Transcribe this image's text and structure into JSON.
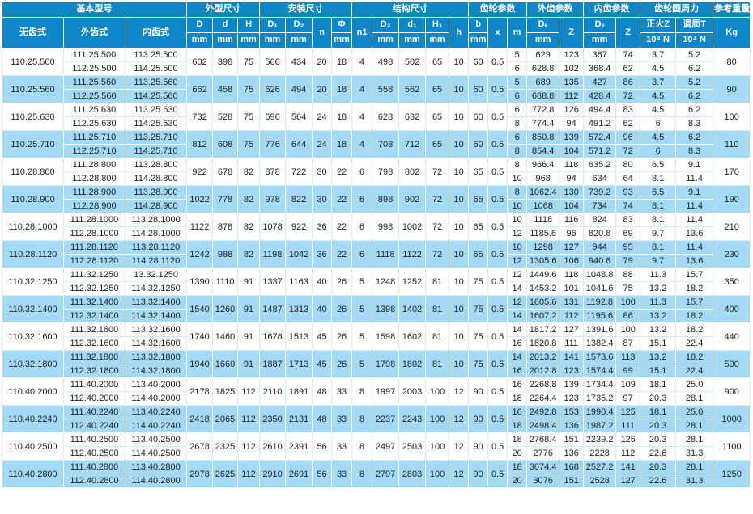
{
  "colors": {
    "header_bg": "#0e86c7",
    "row_alt_bg": "#a4daf5",
    "row_bg": "#ffffff",
    "header_text": "#ffffff",
    "body_text": "#1f1f1f"
  },
  "header": {
    "groups": [
      {
        "label": "基本型号",
        "colspan": 3
      },
      {
        "label": "外型尺寸",
        "colspan": 3
      },
      {
        "label": "安装尺寸",
        "colspan": 4
      },
      {
        "label": "结构尺寸",
        "colspan": 5
      },
      {
        "label": "齿轮参数",
        "colspan": 3
      },
      {
        "label": "外齿参数",
        "colspan": 2
      },
      {
        "label": "内齿参数",
        "colspan": 2
      },
      {
        "label": "齿轮圆周力",
        "colspan": 2
      },
      {
        "label": "参考重量",
        "colspan": 1
      }
    ],
    "cols": [
      {
        "label": "无齿式"
      },
      {
        "label": "外齿式"
      },
      {
        "label": "内齿式"
      },
      {
        "label": "D",
        "unit": "mm"
      },
      {
        "label": "d",
        "unit": "mm"
      },
      {
        "label": "H",
        "unit": "mm"
      },
      {
        "label": "D₁",
        "unit": "mm"
      },
      {
        "label": "D₂",
        "unit": "mm"
      },
      {
        "label": "n"
      },
      {
        "label": "Φ",
        "unit": "mm"
      },
      {
        "label": "n1"
      },
      {
        "label": "D₃",
        "unit": "mm"
      },
      {
        "label": "d₁",
        "unit": "mm"
      },
      {
        "label": "H₁",
        "unit": "mm"
      },
      {
        "label": "h"
      },
      {
        "label": "b",
        "unit": "mm"
      },
      {
        "label": "x"
      },
      {
        "label": "m"
      },
      {
        "label": "Dₑ",
        "unit": "mm"
      },
      {
        "label": "Z"
      },
      {
        "label": "Dₑ",
        "unit": "mm"
      },
      {
        "label": "Z"
      },
      {
        "label": "正火Z",
        "unit": "10⁴ N"
      },
      {
        "label": "调质T",
        "unit": "10⁴ N"
      },
      {
        "label": "Kg"
      }
    ]
  },
  "rows": [
    {
      "model": "110.25.500",
      "ext": [
        "111.25.500",
        "112.25.500"
      ],
      "int": [
        "113.25.500",
        "114.25.500"
      ],
      "shared": [
        "602",
        "398",
        "75",
        "566",
        "434",
        "20",
        "18",
        "4",
        "498",
        "502",
        "65",
        "10",
        "60",
        "0.5"
      ],
      "sub": [
        [
          "5",
          "629",
          "123",
          "367",
          "74",
          "3.7",
          "5.2"
        ],
        [
          "6",
          "628.8",
          "102",
          "368.4",
          "62",
          "4.5",
          "6.2"
        ]
      ],
      "kg": "80"
    },
    {
      "model": "110.25.560",
      "ext": [
        "111.25.560",
        "112.25.560"
      ],
      "int": [
        "113.25.560",
        "114.25.560"
      ],
      "shared": [
        "662",
        "458",
        "75",
        "626",
        "494",
        "20",
        "18",
        "4",
        "558",
        "562",
        "65",
        "10",
        "60",
        "0.5"
      ],
      "sub": [
        [
          "5",
          "689",
          "135",
          "427",
          "86",
          "3.7",
          "5.2"
        ],
        [
          "6",
          "688.8",
          "112",
          "428.4",
          "72",
          "4.5",
          "6.2"
        ]
      ],
      "kg": "90"
    },
    {
      "model": "110.25.630",
      "ext": [
        "111.25.630",
        "112.25.630"
      ],
      "int": [
        "113.25.630",
        "114.25.630"
      ],
      "shared": [
        "732",
        "528",
        "75",
        "696",
        "564",
        "24",
        "18",
        "4",
        "628",
        "632",
        "65",
        "10",
        "60",
        "0.5"
      ],
      "sub": [
        [
          "6",
          "772.8",
          "126",
          "494.4",
          "83",
          "4.5",
          "6.2"
        ],
        [
          "8",
          "774.4",
          "94",
          "491.2",
          "62",
          "6",
          "8.3"
        ]
      ],
      "kg": "100"
    },
    {
      "model": "110.25.710",
      "ext": [
        "111.25.710",
        "112.25.710"
      ],
      "int": [
        "113.25.710",
        "114.25.710"
      ],
      "shared": [
        "812",
        "608",
        "75",
        "776",
        "644",
        "24",
        "18",
        "4",
        "708",
        "712",
        "65",
        "10",
        "60",
        "0.5"
      ],
      "sub": [
        [
          "6",
          "850.8",
          "139",
          "572.4",
          "96",
          "4.5",
          "6.2"
        ],
        [
          "8",
          "854.4",
          "104",
          "571.2",
          "72",
          "6",
          "8.3"
        ]
      ],
      "kg": "110"
    },
    {
      "model": "110.28.800",
      "ext": [
        "111.28.800",
        "112.28.800"
      ],
      "int": [
        "113.28.800",
        "114.28.800"
      ],
      "shared": [
        "922",
        "678",
        "82",
        "878",
        "722",
        "30",
        "22",
        "6",
        "798",
        "802",
        "72",
        "10",
        "65",
        "0.5"
      ],
      "sub": [
        [
          "8",
          "966.4",
          "118",
          "635.2",
          "80",
          "6.5",
          "9.1"
        ],
        [
          "10",
          "968",
          "94",
          "634",
          "64",
          "8.1",
          "11.4"
        ]
      ],
      "kg": "170"
    },
    {
      "model": "110.28.900",
      "ext": [
        "111.28.900",
        "112.28.900"
      ],
      "int": [
        "113.28.900",
        "114.28.900"
      ],
      "shared": [
        "1022",
        "778",
        "82",
        "978",
        "822",
        "30",
        "22",
        "6",
        "898",
        "902",
        "72",
        "10",
        "65",
        "0.5"
      ],
      "sub": [
        [
          "8",
          "1062.4",
          "130",
          "739.2",
          "93",
          "6.5",
          "9.1"
        ],
        [
          "10",
          "1068",
          "104",
          "734",
          "74",
          "8.1",
          "11.4"
        ]
      ],
      "kg": "190"
    },
    {
      "model": "110.28.1000",
      "ext": [
        "111.28.1000",
        "112.28.1000"
      ],
      "int": [
        "113.28.1000",
        "114.28.1000"
      ],
      "shared": [
        "1122",
        "878",
        "82",
        "1078",
        "922",
        "36",
        "22",
        "6",
        "998",
        "1002",
        "72",
        "10",
        "65",
        "0.5"
      ],
      "sub": [
        [
          "10",
          "1118",
          "116",
          "824",
          "83",
          "8.1",
          "11.4"
        ],
        [
          "12",
          "1185.6",
          "96",
          "820.8",
          "69",
          "9.7",
          "13.6"
        ]
      ],
      "kg": "210"
    },
    {
      "model": "110.28.1120",
      "ext": [
        "111.28.1120",
        "112.28.1120"
      ],
      "int": [
        "113.28.1120",
        "114.28.1120"
      ],
      "shared": [
        "1242",
        "988",
        "82",
        "1198",
        "1042",
        "36",
        "22",
        "6",
        "1118",
        "1122",
        "72",
        "10",
        "65",
        "0.5"
      ],
      "sub": [
        [
          "10",
          "1298",
          "127",
          "944",
          "95",
          "8.1",
          "11.4"
        ],
        [
          "12",
          "1305.6",
          "106",
          "940.8",
          "79",
          "9.7",
          "13.6"
        ]
      ],
      "kg": "230"
    },
    {
      "model": "110.32.1250",
      "ext": [
        "111.32.1250",
        "112.32.1250"
      ],
      "int": [
        "13.32.1250",
        "114.32.1250"
      ],
      "shared": [
        "1390",
        "1110",
        "91",
        "1337",
        "1163",
        "40",
        "26",
        "5",
        "1248",
        "1252",
        "81",
        "10",
        "75",
        "0.5"
      ],
      "sub": [
        [
          "12",
          "1449.6",
          "118",
          "1048.8",
          "88",
          "11.3",
          "15.7"
        ],
        [
          "14",
          "1453.2",
          "101",
          "1041.6",
          "75",
          "13.2",
          "18.2"
        ]
      ],
      "kg": "350"
    },
    {
      "model": "110.32.1400",
      "ext": [
        "111.32.1400",
        "112.32.1400"
      ],
      "int": [
        "113.32.1400",
        "114.32.1400"
      ],
      "shared": [
        "1540",
        "1260",
        "91",
        "1487",
        "1313",
        "40",
        "26",
        "5",
        "1398",
        "1402",
        "81",
        "10",
        "75",
        "0.5"
      ],
      "sub": [
        [
          "12",
          "1605.6",
          "131",
          "1192.8",
          "100",
          "11.3",
          "15.7"
        ],
        [
          "14",
          "1607.2",
          "112",
          "1195.6",
          "86",
          "13.2",
          "18.2"
        ]
      ],
      "kg": "400"
    },
    {
      "model": "110.32.1600",
      "ext": [
        "111.32.1600",
        "112.32.1600"
      ],
      "int": [
        "113.32.1600",
        "114.32.1600"
      ],
      "shared": [
        "1740",
        "1460",
        "91",
        "1678",
        "1513",
        "45",
        "26",
        "5",
        "1598",
        "1602",
        "81",
        "10",
        "75",
        "0.5"
      ],
      "sub": [
        [
          "14",
          "1817.2",
          "127",
          "1391.6",
          "100",
          "13.2",
          "18.2"
        ],
        [
          "16",
          "1820.8",
          "111",
          "1382.4",
          "87",
          "15.1",
          "22.4"
        ]
      ],
      "kg": "440"
    },
    {
      "model": "110.32.1800",
      "ext": [
        "111.32.1800",
        "112.32.1800"
      ],
      "int": [
        "113.32.1800",
        "114.32.1800"
      ],
      "shared": [
        "1940",
        "1660",
        "91",
        "1887",
        "1713",
        "45",
        "26",
        "5",
        "1798",
        "1802",
        "81",
        "10",
        "75",
        "0.5"
      ],
      "sub": [
        [
          "14",
          "2013.2",
          "141",
          "1573.6",
          "113",
          "13.2",
          "18.2"
        ],
        [
          "16",
          "2012.8",
          "123",
          "1574.4",
          "99",
          "15.1",
          "22.4"
        ]
      ],
      "kg": "500"
    },
    {
      "model": "110.40.2000",
      "ext": [
        "111.40.2000",
        "112.40.2000"
      ],
      "int": [
        "113.40.2000",
        "114.40.2000"
      ],
      "shared": [
        "2178",
        "1825",
        "112",
        "2110",
        "1891",
        "48",
        "33",
        "8",
        "1997",
        "2003",
        "100",
        "12",
        "90",
        "0.5"
      ],
      "sub": [
        [
          "16",
          "2268.8",
          "139",
          "1734.4",
          "109",
          "18.1",
          "25.0"
        ],
        [
          "18",
          "2264.4",
          "123",
          "1735.2",
          "97",
          "20.3",
          "28.1"
        ]
      ],
      "kg": "900"
    },
    {
      "model": "110.40.2240",
      "ext": [
        "111.40.2240",
        "112.40.2240"
      ],
      "int": [
        "113.40.2240",
        "114.40.2240"
      ],
      "shared": [
        "2418",
        "2065",
        "112",
        "2350",
        "2131",
        "48",
        "33",
        "8",
        "2237",
        "2243",
        "100",
        "12",
        "90",
        "0.5"
      ],
      "sub": [
        [
          "16",
          "2492.8",
          "153",
          "1990.4",
          "125",
          "18.1",
          "25.0"
        ],
        [
          "18",
          "2498.4",
          "136",
          "1987.2",
          "111",
          "20.3",
          "28.1"
        ]
      ],
      "kg": "1000"
    },
    {
      "model": "110.40.2500",
      "ext": [
        "111.40.2500",
        "112.40.2500"
      ],
      "int": [
        "113.40.2500",
        "114.40.2500"
      ],
      "shared": [
        "2678",
        "2325",
        "112",
        "2610",
        "2391",
        "56",
        "33",
        "8",
        "2497",
        "2503",
        "100",
        "12",
        "90",
        "0.5"
      ],
      "sub": [
        [
          "18",
          "2768.4",
          "151",
          "2239.2",
          "125",
          "20.3",
          "28.1"
        ],
        [
          "20",
          "2776",
          "136",
          "2228",
          "112",
          "22.6",
          "31.3"
        ]
      ],
      "kg": "1100"
    },
    {
      "model": "110.40.2800",
      "ext": [
        "111.40.2800",
        "112.40.2800"
      ],
      "int": [
        "113.40.2800",
        "114.40.2800"
      ],
      "shared": [
        "2978",
        "2625",
        "112",
        "2910",
        "2691",
        "56",
        "33",
        "8",
        "2797",
        "2803",
        "100",
        "12",
        "90",
        "0.5"
      ],
      "sub": [
        [
          "18",
          "3074.4",
          "168",
          "2527.2",
          "141",
          "20.3",
          "28.1"
        ],
        [
          "20",
          "3076",
          "151",
          "2528",
          "127",
          "22.6",
          "31.3"
        ]
      ],
      "kg": "1250"
    }
  ]
}
